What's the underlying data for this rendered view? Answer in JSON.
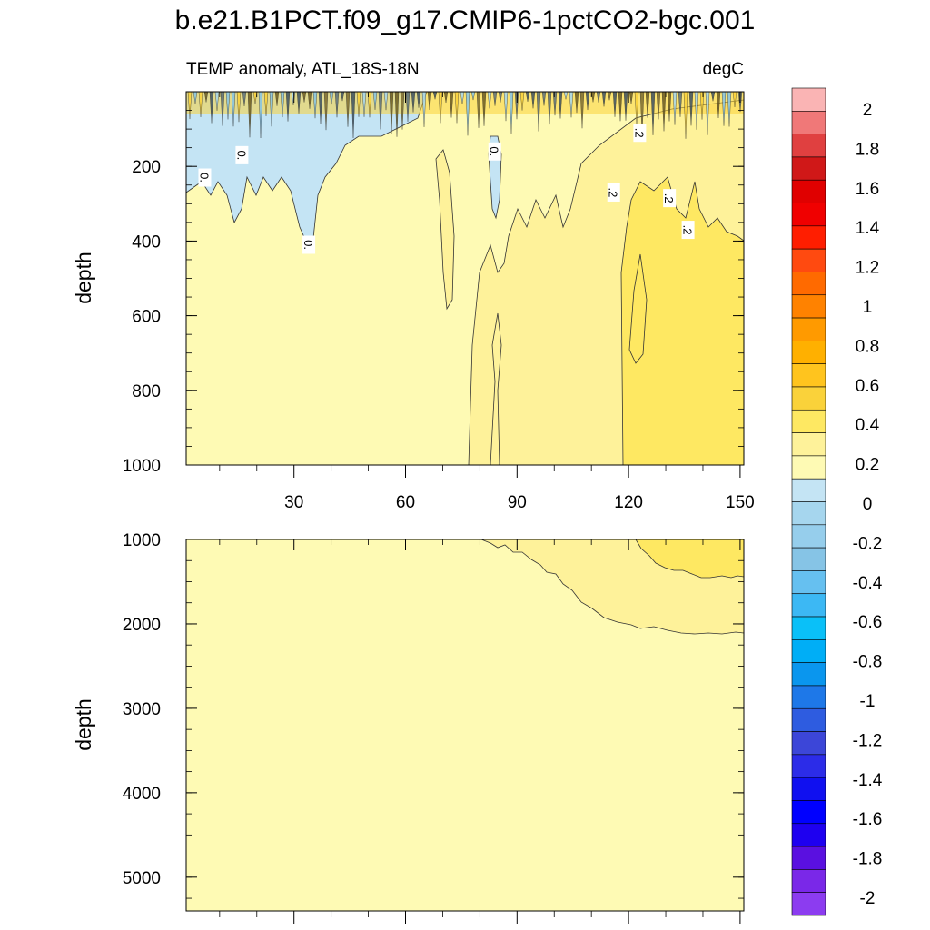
{
  "title": "b.e21.B1PCT.f09_g17.CMIP6-1pctCO2-bgc.001",
  "panel_left_label": "TEMP anomaly, ATL_18S-18N",
  "panel_right_label": "degC",
  "colors": {
    "very_light_yellow": "#FEFAB4",
    "light_yellow": "#FEF29A",
    "yellow": "#FEE862",
    "gold": "#FAD23A",
    "light_blue": "#C4E4F4",
    "blue": "#A6D6EE",
    "mid_blue": "#86C4E6",
    "dark_contour": "#1a1a1a"
  },
  "chart_data": [
    {
      "type": "contour",
      "name": "upper",
      "xlabel": "",
      "ylabel": "depth",
      "xlim": [
        1,
        151
      ],
      "ylim": [
        1000,
        0
      ],
      "xticks": [
        30,
        60,
        90,
        120,
        150
      ],
      "yticks": [
        200,
        400,
        600,
        800,
        1000
      ],
      "contour_labels": [
        {
          "text": "0.",
          "x": 16,
          "y": 170
        },
        {
          "text": "0.",
          "x": 6,
          "y": 230
        },
        {
          "text": "0.",
          "x": 34,
          "y": 410
        },
        {
          "text": "0.",
          "x": 84,
          "y": 160
        },
        {
          "text": ".2",
          "x": 123,
          "y": 110
        },
        {
          "text": ".2",
          "x": 116,
          "y": 270
        },
        {
          "text": ".2",
          "x": 131,
          "y": 285
        },
        {
          "text": ".2",
          "x": 136,
          "y": 370
        }
      ]
    },
    {
      "type": "contour",
      "name": "lower",
      "xlabel": "",
      "ylabel": "depth",
      "xlim": [
        1,
        151
      ],
      "ylim": [
        5400,
        1000
      ],
      "xticks": [
        30,
        60,
        90,
        120,
        150
      ],
      "yticks": [
        1000,
        2000,
        3000,
        4000,
        5000
      ]
    },
    {
      "type": "colorbar",
      "levels": [
        2,
        1.8,
        1.6,
        1.4,
        1.2,
        1,
        0.8,
        0.6,
        0.4,
        0.2,
        0,
        -0.2,
        -0.4,
        -0.6,
        -0.8,
        -1,
        -1.2,
        -1.4,
        -1.6,
        -1.8,
        -2
      ],
      "tick_labels": [
        "2",
        "1.8",
        "1.6",
        "1.4",
        "1.2",
        "1",
        "0.8",
        "0.6",
        "0.4",
        "0.2",
        "0",
        "-0.2",
        "-0.4",
        "-0.6",
        "-0.8",
        "-1",
        "-1.2",
        "-1.4",
        "-1.6",
        "-1.8",
        "-2"
      ],
      "colors": [
        "#FAB4B4",
        "#F07878",
        "#E04040",
        "#D01818",
        "#E00000",
        "#F00000",
        "#FF1E00",
        "#FF4A10",
        "#FF6A00",
        "#FF8200",
        "#FF9A00",
        "#FFB000",
        "#FFC41E",
        "#FAD23A",
        "#FEE862",
        "#FEF29A",
        "#FEFAB4",
        "#C4E4F4",
        "#A6D6EE",
        "#96CEEC",
        "#86C4E6",
        "#66C0F0",
        "#3CB8F4",
        "#0AC0F8",
        "#00AEF6",
        "#0A96EE",
        "#1E78E8",
        "#2E5CE0",
        "#3C46D8",
        "#2C2CE8",
        "#1010F0",
        "#0000FF",
        "#1E00F0",
        "#5A10E0",
        "#7A28E8",
        "#8C3CF0"
      ]
    }
  ]
}
